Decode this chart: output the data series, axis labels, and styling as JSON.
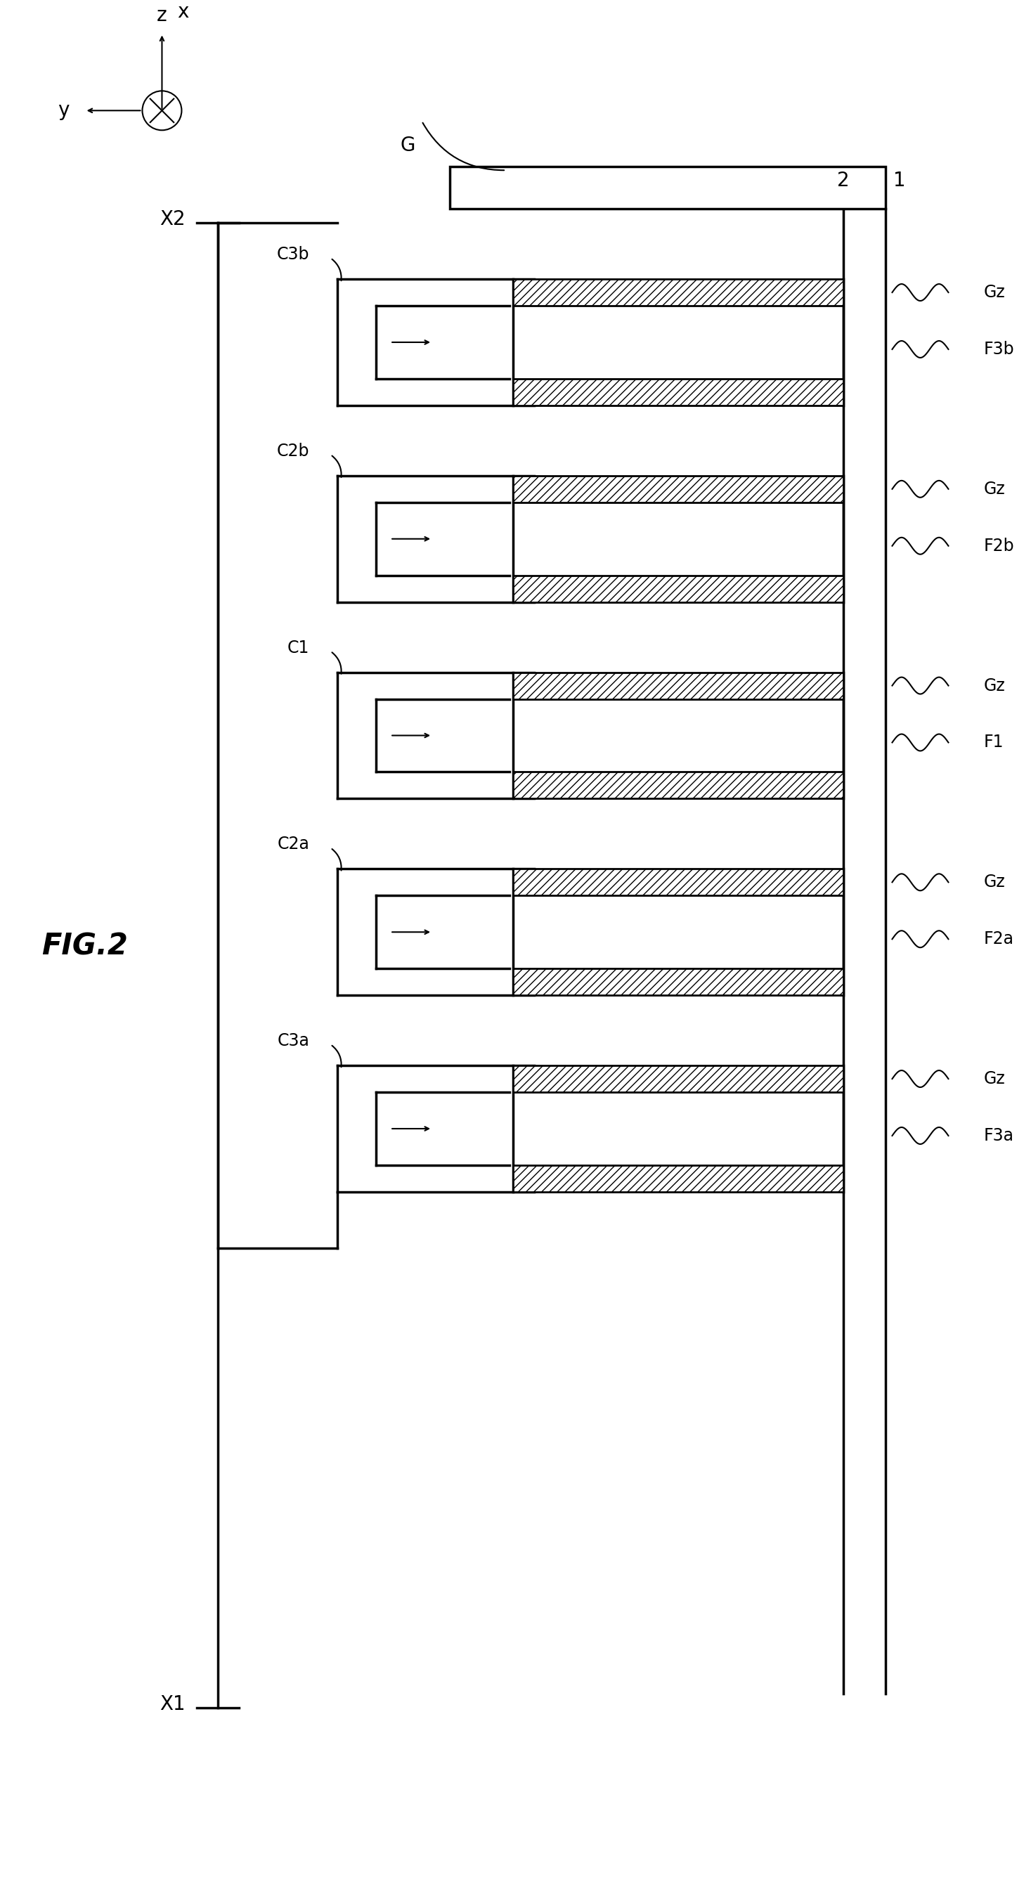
{
  "fig_label": "FIG.2",
  "title": "",
  "bg_color": "#ffffff",
  "line_color": "#000000",
  "hatch_color": "#000000",
  "coord_labels": [
    "z",
    "x",
    "y"
  ],
  "x_axis_labels": [
    "X1",
    "X2"
  ],
  "fin_labels": [
    "F3a",
    "F2a",
    "F1",
    "F2b",
    "F3b"
  ],
  "channel_labels": [
    "C3a",
    "C2a",
    "C1",
    "C2b",
    "C3b"
  ],
  "Gz_label": "Gz",
  "G_label": "G",
  "ref_labels": [
    "1",
    "2"
  ],
  "fin_hatch": "///",
  "lw": 2.0,
  "thin_lw": 1.5
}
